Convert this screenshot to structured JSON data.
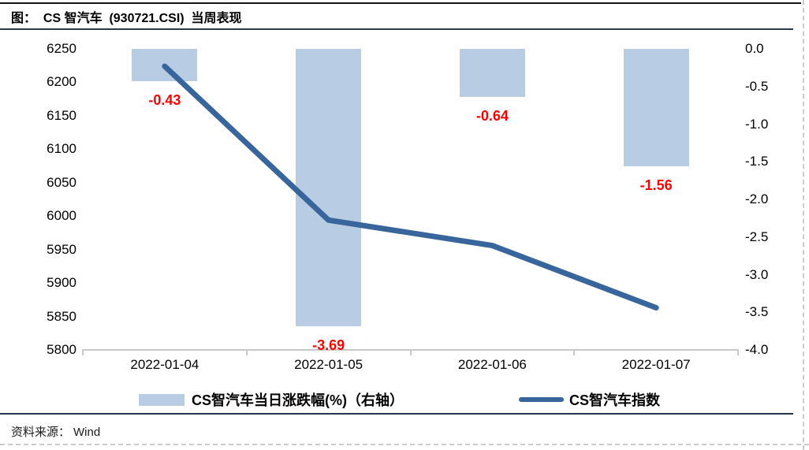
{
  "header": {
    "title": "图：  CS 智汽车  (930721.CSI)  当周表现"
  },
  "source": {
    "label": "资料来源：",
    "value": "Wind"
  },
  "chart_data": {
    "type": "bar+line",
    "categories": [
      "2022-01-04",
      "2022-01-05",
      "2022-01-06",
      "2022-01-07"
    ],
    "series": [
      {
        "name": "CS智汽车当日涨跌幅(%)（右轴）",
        "type": "bar",
        "axis": "right",
        "values": [
          -0.43,
          -3.69,
          -0.64,
          -1.56
        ],
        "data_labels": [
          "-0.43",
          "-3.69",
          "-0.64",
          "-1.56"
        ],
        "color": "#b8cce4"
      },
      {
        "name": "CS智汽车指数",
        "type": "line",
        "axis": "left",
        "values": [
          6224,
          5994,
          5956,
          5863
        ],
        "color": "#38659c"
      }
    ],
    "left_axis": {
      "min": 5800,
      "max": 6250,
      "step": 50,
      "decimals": 0
    },
    "right_axis": {
      "min": -4.0,
      "max": 0.0,
      "step": 0.5,
      "decimals": 1
    },
    "data_label_color": "#ff0000",
    "grid": false,
    "legend_position": "bottom"
  }
}
